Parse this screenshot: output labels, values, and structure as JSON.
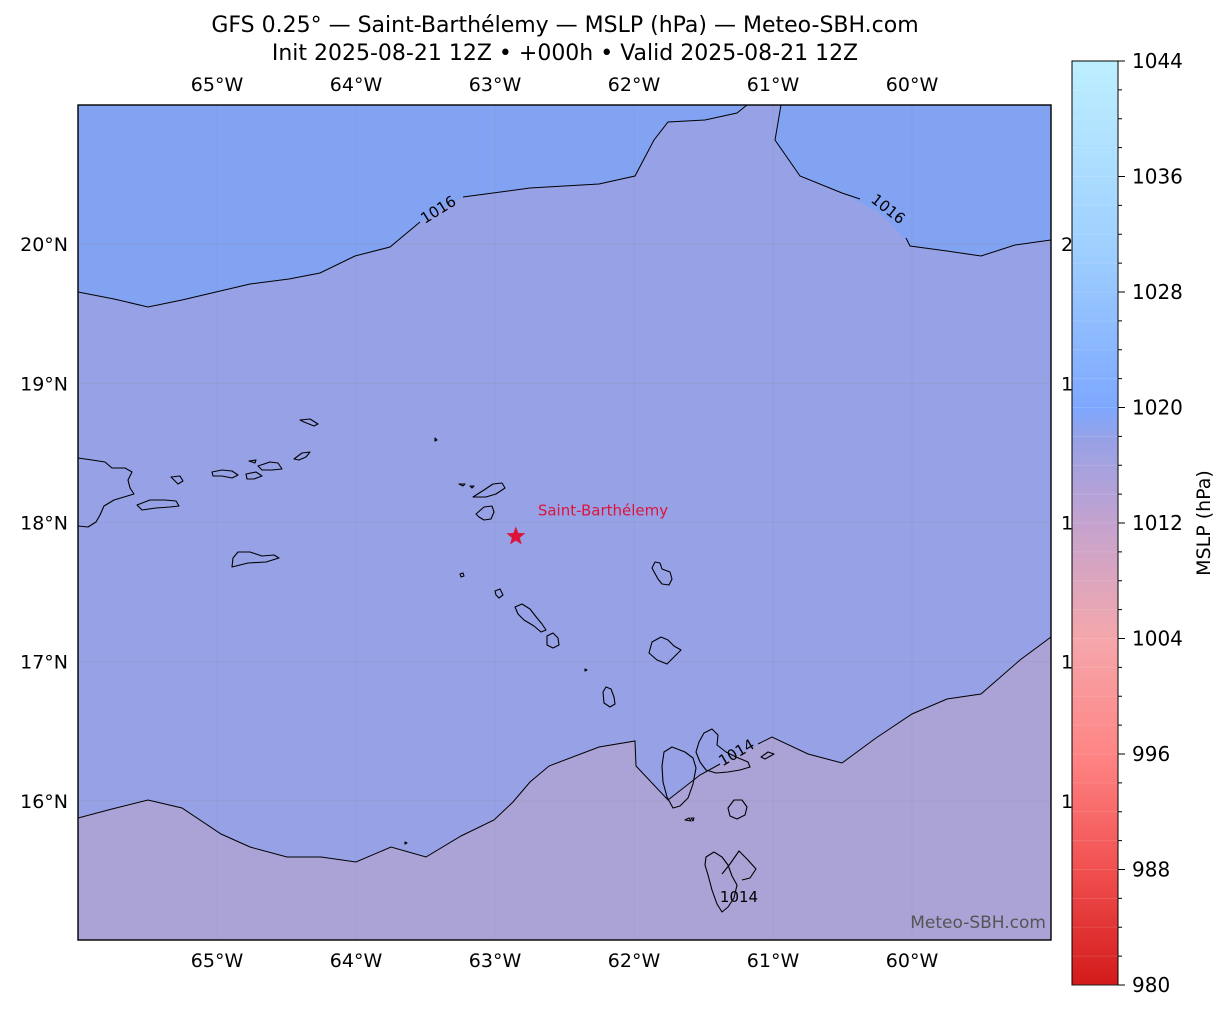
{
  "title": {
    "line1": "GFS 0.25° — Saint-Barthélemy — MSLP (hPa) — Meteo-SBH.com",
    "line2": "Init 2025-08-21 12Z • +000h • Valid 2025-08-21 12Z"
  },
  "map": {
    "extent_lon": [
      -66.0,
      -59.0
    ],
    "extent_lat": [
      15.0,
      21.0
    ],
    "lon_ticks": [
      -65,
      -64,
      -63,
      -62,
      -61,
      -60
    ],
    "lon_labels": [
      "65°W",
      "64°W",
      "63°W",
      "62°W",
      "61°W",
      "60°W"
    ],
    "lat_ticks": [
      20,
      19,
      18,
      17,
      16
    ],
    "lat_labels": [
      "20°N",
      "19°N",
      "18°N",
      "17°N",
      "16°N"
    ],
    "marker": {
      "name": "Saint-Barthélemy",
      "lon": -62.85,
      "lat": 17.9,
      "color": "#dc143c"
    },
    "contours": [
      {
        "value": "1016",
        "labels": [
          "1016",
          "1016"
        ]
      },
      {
        "value": "1014",
        "labels": [
          "1014",
          "1014"
        ]
      }
    ],
    "fill_colors": {
      "high": "#82a2f2",
      "mid": "#97a1e6",
      "low": "#aba2d6"
    },
    "watermark": "Meteo-SBH.com",
    "edge_fragment": "2"
  },
  "colorbar": {
    "min": 980,
    "max": 1044,
    "tick_values": [
      1044,
      1036,
      1028,
      1020,
      1012,
      1004,
      996,
      988,
      980
    ],
    "tick_labels": [
      "1044",
      "1036",
      "1028",
      "1020",
      "1012",
      "1004",
      "996",
      "988",
      "980"
    ],
    "label": "MSLP (hPa)",
    "colors": [
      "#d31a1a",
      "#f15050",
      "#ff8585",
      "#f4a7ab",
      "#c4a3cf",
      "#97a1e6",
      "#7ea8ff",
      "#9fd0ff",
      "#bdefff"
    ]
  }
}
